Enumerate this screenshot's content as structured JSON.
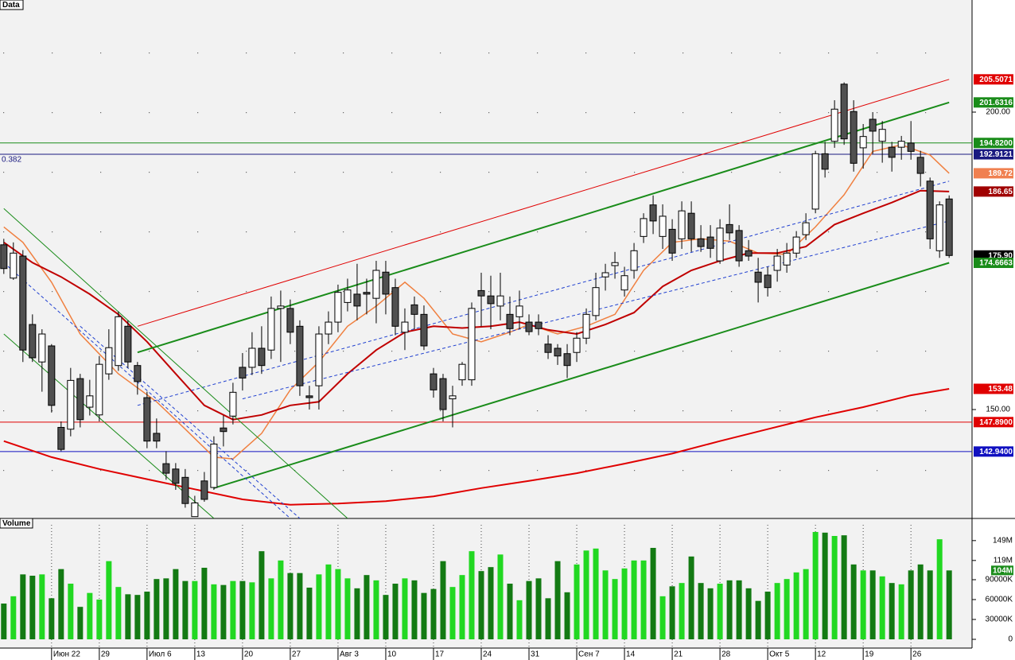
{
  "chart_data": [
    {
      "type": "candlestick",
      "title": "Data",
      "xlim": [
        -0.4,
        101.4
      ],
      "ylim": [
        131.69,
        218.85
      ],
      "yticks": [
        {
          "value": 200,
          "label": "200.00"
        },
        {
          "value": 150,
          "label": "150.00"
        }
      ],
      "up_color": "#ffffff",
      "down_color": "#505050",
      "grid": true,
      "open": [
        177.7,
        172.1,
        175.8,
        164.3,
        158,
        160.7,
        147,
        146.7,
        155.2,
        150.4,
        149.1,
        156,
        157.4,
        164,
        157.4,
        152,
        146,
        140.9,
        140,
        138.6,
        132,
        138,
        136.9,
        146.9,
        148.9,
        157.1,
        157.1,
        160.3,
        160,
        167,
        167,
        164,
        152.3,
        154,
        162.7,
        164.7,
        168,
        169.4,
        169.7,
        168.7,
        173.1,
        170.5,
        163,
        167.6,
        166,
        156,
        155.2,
        151.8,
        155,
        155,
        170,
        169.1,
        167.4,
        166,
        165.6,
        164.7,
        164.7,
        161,
        160.3,
        159.4,
        159.6,
        162,
        165.8,
        172.3,
        174.2,
        170.1,
        173.4,
        179.1,
        184.4,
        179.1,
        180.3,
        178.7,
        183,
        178.7,
        179,
        175,
        181.1,
        180.1,
        176.7,
        173.1,
        172.6,
        173.4,
        174.3,
        176.3,
        179.4,
        183.7,
        193,
        195.1,
        204.7,
        200.1,
        194,
        198.8,
        195.1,
        194.1,
        194.1,
        194.8,
        192.4,
        188.4,
        176.7,
        185.4
      ],
      "high": [
        178.7,
        178.1,
        176.8,
        166,
        163.5,
        161,
        148,
        157,
        156,
        155,
        159,
        163.5,
        166.5,
        165,
        158,
        153,
        148.5,
        143,
        141,
        140,
        135.5,
        139.5,
        145.5,
        149,
        154.5,
        159.5,
        163,
        164,
        169,
        170,
        168.5,
        165,
        154,
        164,
        166.5,
        171,
        172,
        174.5,
        172,
        175,
        175,
        172,
        167,
        169,
        167.5,
        157,
        156,
        154,
        158,
        168,
        173,
        172.5,
        173,
        169,
        170,
        166,
        166,
        162.5,
        161,
        161,
        163,
        167,
        173,
        174.5,
        176.5,
        174,
        178,
        183,
        186,
        184.5,
        182,
        185,
        185,
        181,
        181,
        182,
        184.5,
        181,
        178.5,
        175.5,
        174,
        177,
        178,
        180,
        183,
        193.5,
        195,
        202,
        205,
        202,
        198,
        200,
        198.5,
        195,
        196,
        198.5,
        193.5,
        189,
        185,
        186
      ],
      "low": [
        172.8,
        171.8,
        158,
        158,
        153,
        149.5,
        143,
        145.5,
        147,
        149,
        148,
        155,
        156.5,
        157,
        152.5,
        143.5,
        143.5,
        138.2,
        136.5,
        133.5,
        132,
        134.5,
        136.5,
        143.8,
        147.5,
        153.2,
        155.8,
        156,
        158.5,
        158,
        161,
        152.3,
        150,
        150,
        161,
        163,
        166.5,
        165,
        166,
        164.5,
        166,
        162.5,
        160,
        163.5,
        160,
        152,
        148,
        147,
        154,
        154,
        164,
        163.5,
        165,
        162.5,
        163.5,
        162.5,
        162.5,
        158.5,
        157.5,
        155.3,
        158,
        161,
        165,
        170,
        172,
        169,
        172,
        178,
        179.5,
        177,
        175,
        177,
        176.5,
        176.5,
        175.5,
        174.5,
        178.5,
        174,
        175,
        168,
        169,
        171.5,
        173,
        175.5,
        178.5,
        183,
        189,
        194,
        194.5,
        190,
        190.5,
        193,
        191.5,
        190,
        192,
        192,
        187.5,
        177,
        175.5,
        175.5
      ],
      "close": [
        173.7,
        176.3,
        160,
        158.7,
        162.7,
        150.7,
        143.3,
        154.9,
        148.3,
        152.3,
        157.6,
        160.4,
        165.6,
        158,
        154.7,
        144.7,
        144.7,
        139.3,
        137.6,
        134.2,
        134.3,
        134.9,
        144.2,
        146.3,
        152.9,
        155.3,
        160.3,
        157.4,
        167,
        167.4,
        163,
        154,
        152,
        162.7,
        164.7,
        169.7,
        170.1,
        167.4,
        169.4,
        173.4,
        169.4,
        164,
        164.7,
        166,
        160.7,
        153.3,
        150,
        152.3,
        157.6,
        167,
        169.1,
        167.8,
        169.1,
        163.6,
        167.4,
        163.1,
        163.6,
        159.6,
        159,
        157.4,
        162,
        166,
        170.5,
        173,
        174.7,
        172.5,
        176.7,
        182.1,
        181.7,
        182.5,
        176.3,
        183.4,
        178.7,
        177.4,
        177.1,
        180.5,
        179.7,
        175,
        175.8,
        171.4,
        170.5,
        175.8,
        176.3,
        179,
        181.4,
        193,
        190.4,
        200.5,
        195.5,
        191.4,
        195.9,
        196.8,
        197.1,
        192.4,
        195.1,
        193.4,
        189.7,
        178.7,
        184.4,
        175.9
      ],
      "overlays": [
        {
          "color": "#f08040",
          "width": 1.5,
          "dashed": false,
          "x": [
            0,
            2,
            5,
            8,
            12,
            16,
            19,
            22,
            24,
            27,
            30,
            33,
            36,
            39,
            42,
            44,
            47,
            50,
            53,
            55,
            58,
            61,
            64,
            67,
            70,
            73,
            76,
            79,
            82,
            85,
            88,
            91,
            94,
            97,
            99
          ],
          "values": [
            180.7,
            178.1,
            171.4,
            162.7,
            156,
            151.3,
            146.7,
            142,
            141.7,
            146,
            153.3,
            158,
            164,
            167.4,
            171.4,
            168.7,
            162.7,
            161.4,
            163,
            164.3,
            162.7,
            164,
            166,
            173.4,
            178.1,
            178.7,
            178.3,
            176.3,
            176.1,
            180.7,
            186.1,
            193.4,
            194.5,
            192.8,
            189.72
          ]
        },
        {
          "color": "#c00000",
          "width": 2,
          "dashed": false,
          "x": [
            0,
            3,
            6,
            9,
            12,
            15,
            18,
            21,
            24,
            27,
            30,
            33,
            36,
            39,
            42,
            45,
            48,
            51,
            54,
            57,
            60,
            63,
            66,
            69,
            72,
            75,
            78,
            81,
            84,
            87,
            90,
            93,
            96,
            99
          ],
          "values": [
            178.1,
            174.7,
            172.3,
            169.4,
            166,
            161.4,
            156,
            150.7,
            148.3,
            149.1,
            150.7,
            151.3,
            156,
            160,
            163,
            164,
            163.7,
            164,
            164.7,
            163.4,
            162.7,
            164.3,
            166.3,
            170.7,
            173.4,
            175,
            176.3,
            176.3,
            177.4,
            181.1,
            183,
            184.8,
            186.8,
            186.65
          ]
        },
        {
          "color": "#e00000",
          "width": 2,
          "dashed": false,
          "x": [
            0,
            5,
            10,
            15,
            20,
            25,
            30,
            35,
            40,
            45,
            50,
            55,
            60,
            65,
            70,
            75,
            80,
            85,
            90,
            95,
            99
          ],
          "values": [
            144.7,
            142,
            140,
            138.3,
            136.6,
            134.9,
            134,
            134.2,
            134.6,
            135.4,
            136.8,
            138,
            139.3,
            140.9,
            142.6,
            144.7,
            146.7,
            148.7,
            150.4,
            152.4,
            153.48
          ]
        },
        {
          "color": "#1a8c1a",
          "width": 2,
          "dashed": false,
          "x": [
            14,
            99
          ],
          "values": [
            159.6,
            201.6316
          ]
        },
        {
          "color": "#1a8c1a",
          "width": 2,
          "dashed": false,
          "x": [
            22,
            99
          ],
          "values": [
            136.8,
            174.6663
          ]
        },
        {
          "color": "#e00000",
          "width": 1,
          "dashed": false,
          "x": [
            14,
            99
          ],
          "values": [
            164,
            205.5071
          ]
        },
        {
          "color": "#2040d0",
          "width": 1,
          "dashed": true,
          "x": [
            14,
            99
          ],
          "values": [
            150.7,
            188.4
          ]
        },
        {
          "color": "#2040d0",
          "width": 1,
          "dashed": true,
          "x": [
            25,
            99
          ],
          "values": [
            151.8,
            181.7
          ]
        },
        {
          "color": "#1a8c1a",
          "width": 1,
          "dashed": false,
          "x": [
            0,
            36
          ],
          "values": [
            183.8,
            131.7
          ]
        },
        {
          "color": "#1a8c1a",
          "width": 1,
          "dashed": false,
          "x": [
            0,
            22
          ],
          "values": [
            162.7,
            131.7
          ]
        },
        {
          "color": "#2040d0",
          "width": 1,
          "dashed": true,
          "x": [
            0,
            30
          ],
          "values": [
            174.7,
            131.7
          ]
        },
        {
          "color": "#2040d0",
          "width": 1,
          "dashed": true,
          "x": [
            8,
            31
          ],
          "values": [
            164,
            131.7
          ]
        }
      ],
      "levels": [
        {
          "value": 205.5071,
          "label": "205.5071",
          "color": "#e00000",
          "line": false
        },
        {
          "value": 201.6316,
          "label": "201.6316",
          "color": "#1a8c1a",
          "line": false
        },
        {
          "value": 194.82,
          "label": "194.8200",
          "color": "#1a8c1a",
          "line": true
        },
        {
          "value": 192.9121,
          "label": "192.9121",
          "color": "#1a1a80",
          "line": true
        },
        {
          "value": 189.72,
          "label": "189.72",
          "color": "#f08050",
          "line": false
        },
        {
          "value": 186.65,
          "label": "186.65",
          "color": "#a00000",
          "line": false
        },
        {
          "value": 175.9,
          "label": "175.90",
          "color": "#000000",
          "line": false
        },
        {
          "value": 174.6663,
          "label": "174.6663",
          "color": "#1a8c1a",
          "line": false
        },
        {
          "value": 153.48,
          "label": "153.48",
          "color": "#e00000",
          "line": false
        },
        {
          "value": 147.89,
          "label": "147.8900",
          "color": "#e00000",
          "line": true
        },
        {
          "value": 142.94,
          "label": "142.9400",
          "color": "#1010c0",
          "line": true
        }
      ],
      "annotation": "0.382"
    },
    {
      "type": "bar",
      "title": "Volume",
      "xlim": [
        -0.4,
        101.4
      ],
      "ylim": [
        0,
        182.4
      ],
      "yticks": [
        {
          "value": 149,
          "label": "149M"
        },
        {
          "value": 119,
          "label": "119M"
        },
        {
          "value": 90,
          "label": "90000K"
        },
        {
          "value": 60,
          "label": "60000K"
        },
        {
          "value": 30,
          "label": "30000K"
        },
        0
      ],
      "xticks": [
        {
          "value": 5,
          "label": "Июн 22"
        },
        {
          "value": 10,
          "label": "29"
        },
        {
          "value": 15,
          "label": "Июл 6"
        },
        {
          "value": 20,
          "label": "13"
        },
        {
          "value": 25,
          "label": "20"
        },
        {
          "value": 30,
          "label": "27"
        },
        {
          "value": 35,
          "label": "Авг 3"
        },
        {
          "value": 40,
          "label": "10"
        },
        {
          "value": 45,
          "label": "17"
        },
        {
          "value": 50,
          "label": "24"
        },
        {
          "value": 55,
          "label": "31"
        },
        {
          "value": 60,
          "label": "Сен 7"
        },
        {
          "value": 65,
          "label": "14"
        },
        {
          "value": 70,
          "label": "21"
        },
        {
          "value": 75,
          "label": "28"
        },
        {
          "value": 80,
          "label": "Окт 5"
        },
        {
          "value": 85,
          "label": "12"
        },
        {
          "value": 90,
          "label": "19"
        },
        {
          "value": 95,
          "label": "26"
        }
      ],
      "up_color": "#22d822",
      "down_color": "#137a13",
      "values": [
        54,
        65,
        98,
        96,
        98,
        62,
        106,
        84,
        49,
        70,
        60,
        118,
        79,
        68,
        67,
        72,
        91,
        92,
        106,
        88,
        88,
        108,
        83,
        82,
        88,
        88,
        86,
        133,
        92,
        119,
        100,
        100,
        78,
        98,
        113,
        106,
        92,
        77,
        97,
        89,
        67,
        84,
        92,
        89,
        70,
        76,
        118,
        79,
        97,
        133,
        103,
        109,
        128,
        84,
        59,
        88,
        92,
        62,
        118,
        71,
        113,
        134,
        137,
        104,
        91,
        107,
        119,
        119,
        138,
        65,
        80,
        85,
        125,
        85,
        77,
        84,
        89,
        89,
        77,
        58,
        72,
        85,
        91,
        101,
        106,
        162,
        161,
        156,
        157,
        113,
        104,
        104,
        95,
        85,
        83,
        104,
        113,
        104,
        151,
        104
      ],
      "marker": {
        "value": 104,
        "label": "104M",
        "color": "#1a8c1a"
      }
    }
  ]
}
